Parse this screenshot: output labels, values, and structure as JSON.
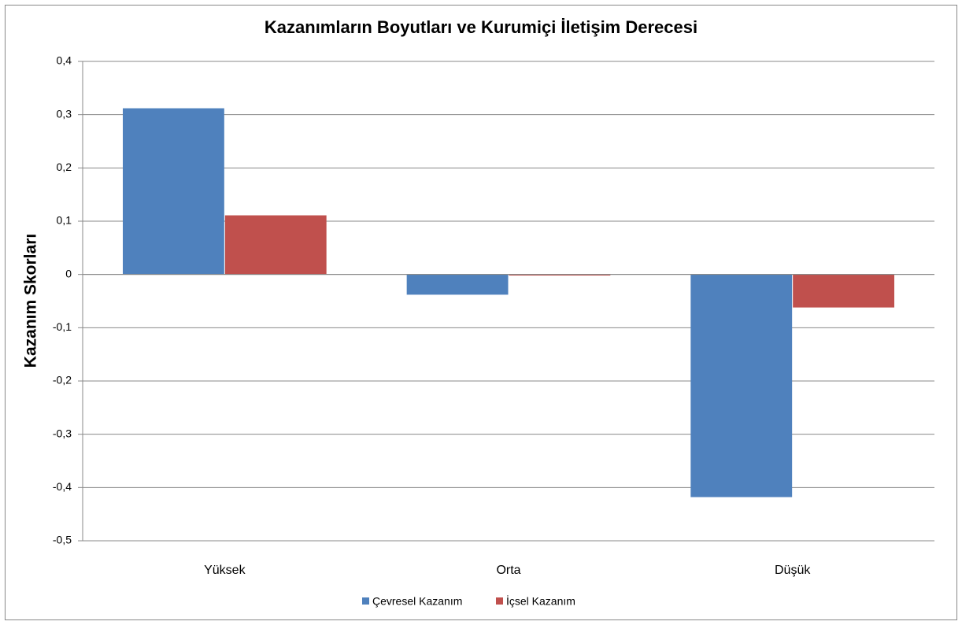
{
  "chart_data": {
    "type": "bar",
    "title": "Kazanımların Boyutları ve Kurumiçi İletişim Derecesi",
    "y_label": "Kazanım Skorları",
    "categories": [
      "Yüksek",
      "Orta",
      "Düşük"
    ],
    "series": [
      {
        "name": "Çevresel Kazanım",
        "color": "#4f81bd",
        "values": [
          0.312,
          -0.038,
          -0.418
        ]
      },
      {
        "name": "İçsel Kazanım",
        "color": "#c0504d",
        "values": [
          0.111,
          -0.002,
          -0.062
        ]
      }
    ],
    "ylim": [
      -0.5,
      0.4
    ],
    "yticks": [
      {
        "value": -0.5,
        "label": "-0,5"
      },
      {
        "value": -0.4,
        "label": "-0,4"
      },
      {
        "value": -0.3,
        "label": "-0,3"
      },
      {
        "value": -0.2,
        "label": "-0,2"
      },
      {
        "value": -0.1,
        "label": "-0,1"
      },
      0,
      {
        "value": 0.1,
        "label": "0,1"
      },
      {
        "value": 0.2,
        "label": "0,2"
      },
      {
        "value": 0.3,
        "label": "0,3"
      },
      {
        "value": 0.4,
        "label": "0,4"
      }
    ],
    "grid": true,
    "legend": "bottom"
  }
}
